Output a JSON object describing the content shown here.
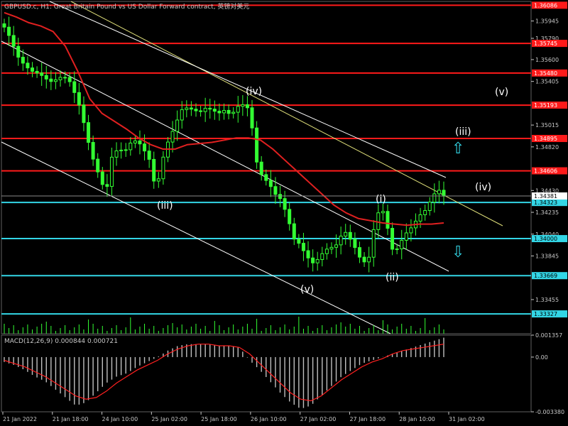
{
  "chart_data": {
    "type": "candlestick",
    "symbol_title": "GBPUSD.c, H1:  Great Britain Pound vs US Dollar Forward contract, 英镑对美元",
    "price_axis": {
      "ticks": [
        "1.35945",
        "1.35790",
        "1.35600",
        "1.35405",
        "1.35015",
        "1.34820",
        "1.34430",
        "1.34235",
        "1.34040",
        "1.33845",
        "1.33455"
      ],
      "ylim": [
        1.3315,
        1.3612
      ]
    },
    "time_axis": {
      "labels": [
        "21 Jan 2022",
        "21 Jan 18:00",
        "24 Jan 10:00",
        "25 Jan 02:00",
        "25 Jan 18:00",
        "26 Jan 10:00",
        "27 Jan 02:00",
        "27 Jan 18:00",
        "28 Jan 10:00",
        "31 Jan 02:00"
      ]
    },
    "current_price": "1.34381",
    "price_path": [
      1.3592,
      1.3588,
      1.3575,
      1.3562,
      1.3555,
      1.355,
      1.3548,
      1.3545,
      1.354,
      1.3542,
      1.3545,
      1.3543,
      1.353,
      1.3515,
      1.349,
      1.347,
      1.3455,
      1.344,
      1.3475,
      1.348,
      1.3478,
      1.3486,
      1.3488,
      1.348,
      1.347,
      1.3442,
      1.347,
      1.3488,
      1.35,
      1.3515,
      1.3517,
      1.3515,
      1.3513,
      1.3517,
      1.3515,
      1.3512,
      1.3515,
      1.351,
      1.3518,
      1.352,
      1.3515,
      1.347,
      1.3455,
      1.345,
      1.344,
      1.3435,
      1.342,
      1.34,
      1.3395,
      1.3385,
      1.3378,
      1.3382,
      1.339,
      1.3392,
      1.3395,
      1.3408,
      1.34,
      1.339,
      1.3378,
      1.3382,
      1.3415,
      1.343,
      1.341,
      1.3385,
      1.3396,
      1.3405,
      1.3411,
      1.342,
      1.3425,
      1.3435,
      1.3445,
      1.3438
    ],
    "ma_path": [
      1.3602,
      1.3598,
      1.3593,
      1.359,
      1.3585,
      1.3572,
      1.355,
      1.3525,
      1.3512,
      1.3505,
      1.3498,
      1.349,
      1.3484,
      1.348,
      1.348,
      1.3484,
      1.3485,
      1.3486,
      1.3488,
      1.349,
      1.349,
      1.3488,
      1.348,
      1.347,
      1.346,
      1.345,
      1.344,
      1.343,
      1.3423,
      1.3418,
      1.3416,
      1.3414,
      1.3413,
      1.3412,
      1.3413,
      1.3413,
      1.3414
    ],
    "horizontal_levels": [
      {
        "price": "1.36086",
        "color": "#ff1a1a"
      },
      {
        "price": "1.35745",
        "color": "#ff1a1a"
      },
      {
        "price": "1.35480",
        "color": "#ff1a1a"
      },
      {
        "price": "1.35193",
        "color": "#ff1a1a"
      },
      {
        "price": "1.34895",
        "color": "#ff1a1a"
      },
      {
        "price": "1.34606",
        "color": "#ff1a1a"
      },
      {
        "price": "1.34323",
        "color": "#33d6e6"
      },
      {
        "price": "1.34000",
        "color": "#33d6e6"
      },
      {
        "price": "1.33669",
        "color": "#33d6e6"
      },
      {
        "price": "1.33327",
        "color": "#33d6e6"
      }
    ],
    "wave_labels": [
      "(iv)",
      "(iii)",
      "(v)",
      "(i)",
      "(ii)",
      "(iii)",
      "(iv)",
      "(v)"
    ],
    "macd": {
      "label": "MACD(12,26,9) 0.000844 0.000721",
      "axis_ticks": [
        "0.001357",
        "0.00",
        "-0.003380"
      ],
      "ylim": [
        -0.00338,
        0.001357
      ],
      "histogram": [
        -0.0003,
        -0.0005,
        -0.0008,
        -0.0012,
        -0.0015,
        -0.002,
        -0.0025,
        -0.003,
        -0.0028,
        -0.0022,
        -0.0016,
        -0.0012,
        -0.001,
        -0.0006,
        -0.0003,
        0.0,
        0.0004,
        0.0007,
        0.0008,
        0.0008,
        0.0008,
        0.0007,
        0.0007,
        0.0006,
        -0.0002,
        -0.0008,
        -0.0015,
        -0.0022,
        -0.0028,
        -0.0032,
        -0.003,
        -0.0024,
        -0.0018,
        -0.0012,
        -0.0008,
        -0.0004,
        -0.0002,
        0.0,
        0.0002,
        0.0004,
        0.0006,
        0.0008,
        0.001,
        0.0012
      ],
      "signal": [
        -0.0002,
        -0.0004,
        -0.0006,
        -0.0009,
        -0.0012,
        -0.0016,
        -0.002,
        -0.0024,
        -0.0026,
        -0.0025,
        -0.0021,
        -0.0016,
        -0.0012,
        -0.0008,
        -0.0005,
        -0.0002,
        0.0002,
        0.0005,
        0.0007,
        0.0008,
        0.0008,
        0.0007,
        0.0007,
        0.0006,
        0.0002,
        -0.0004,
        -0.001,
        -0.0016,
        -0.0022,
        -0.0026,
        -0.0027,
        -0.0024,
        -0.0019,
        -0.0014,
        -0.001,
        -0.0006,
        -0.0003,
        -0.0001,
        0.0002,
        0.0004,
        0.0005,
        0.0006,
        0.0007,
        0.0008
      ]
    },
    "colors": {
      "background": "#000000",
      "candles": "#33ff33",
      "moving_average": "#e02020",
      "resistance_level": "#ff1a1a",
      "support_level": "#33d6e6",
      "channel_upper": "#e0e07a",
      "channel_lower": "#ffffff",
      "macd_histogram": "#c0c0c0",
      "macd_signal": "#ff2020",
      "arrows": "#33d6e6"
    }
  }
}
